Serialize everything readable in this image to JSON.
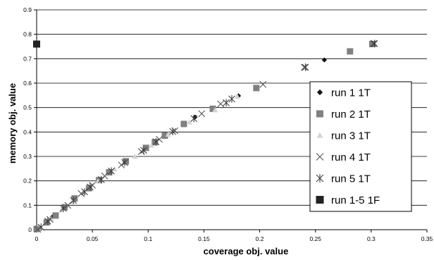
{
  "chart_data": {
    "type": "scatter",
    "title": "",
    "xlabel": "coverage obj. value",
    "ylabel": "memory obj. value",
    "xlim": [
      0,
      0.35
    ],
    "ylim": [
      0,
      0.9
    ],
    "x_ticks": [
      "0",
      "0.05",
      "0.1",
      "0.15",
      "0.2",
      "0.25",
      "0.3",
      "0.35"
    ],
    "y_ticks": [
      "0",
      "0.1",
      "0.2",
      "0.3",
      "0.4",
      "0.5",
      "0.6",
      "0.7",
      "0.8",
      "0.9"
    ],
    "grid": "horizontal",
    "legend_position": "right",
    "series": [
      {
        "name": "run 1 1T",
        "marker": "diamond",
        "color": "#111111",
        "points": [
          [
            0.002,
            0.005
          ],
          [
            0.014,
            0.052
          ],
          [
            0.026,
            0.092
          ],
          [
            0.047,
            0.171
          ],
          [
            0.066,
            0.233
          ],
          [
            0.08,
            0.28
          ],
          [
            0.106,
            0.36
          ],
          [
            0.142,
            0.461
          ],
          [
            0.181,
            0.548
          ],
          [
            0.258,
            0.695
          ],
          [
            0.301,
            0.758
          ]
        ]
      },
      {
        "name": "run 2 1T",
        "marker": "square",
        "color": "#808080",
        "points": [
          [
            0.0,
            0.003
          ],
          [
            0.009,
            0.03
          ],
          [
            0.017,
            0.058
          ],
          [
            0.025,
            0.092
          ],
          [
            0.034,
            0.128
          ],
          [
            0.047,
            0.17
          ],
          [
            0.056,
            0.203
          ],
          [
            0.065,
            0.235
          ],
          [
            0.08,
            0.28
          ],
          [
            0.098,
            0.335
          ],
          [
            0.106,
            0.358
          ],
          [
            0.115,
            0.385
          ],
          [
            0.132,
            0.433
          ],
          [
            0.158,
            0.495
          ],
          [
            0.197,
            0.58
          ],
          [
            0.281,
            0.73
          ],
          [
            0.301,
            0.76
          ]
        ]
      },
      {
        "name": "run 3 1T",
        "marker": "triangle",
        "color": "#d4d4d4",
        "points": [
          [
            0.003,
            0.008
          ],
          [
            0.013,
            0.045
          ],
          [
            0.022,
            0.08
          ],
          [
            0.032,
            0.115
          ],
          [
            0.042,
            0.152
          ],
          [
            0.055,
            0.198
          ],
          [
            0.07,
            0.248
          ],
          [
            0.088,
            0.3
          ],
          [
            0.103,
            0.345
          ],
          [
            0.118,
            0.39
          ],
          [
            0.137,
            0.44
          ],
          [
            0.16,
            0.49
          ],
          [
            0.18,
            0.545
          ]
        ]
      },
      {
        "name": "run 4 1T",
        "marker": "x",
        "color": "#555555",
        "points": [
          [
            0.001,
            0.002
          ],
          [
            0.012,
            0.042
          ],
          [
            0.028,
            0.1
          ],
          [
            0.04,
            0.148
          ],
          [
            0.05,
            0.182
          ],
          [
            0.061,
            0.22
          ],
          [
            0.076,
            0.265
          ],
          [
            0.094,
            0.32
          ],
          [
            0.11,
            0.37
          ],
          [
            0.124,
            0.405
          ],
          [
            0.148,
            0.475
          ],
          [
            0.165,
            0.515
          ],
          [
            0.203,
            0.595
          ],
          [
            0.24,
            0.665
          ],
          [
            0.302,
            0.762
          ]
        ]
      },
      {
        "name": "run 5 1T",
        "marker": "asterisk",
        "color": "#404040",
        "points": [
          [
            0.004,
            0.01
          ],
          [
            0.01,
            0.035
          ],
          [
            0.024,
            0.088
          ],
          [
            0.033,
            0.12
          ],
          [
            0.043,
            0.155
          ],
          [
            0.048,
            0.175
          ],
          [
            0.058,
            0.205
          ],
          [
            0.067,
            0.24
          ],
          [
            0.079,
            0.275
          ],
          [
            0.096,
            0.325
          ],
          [
            0.107,
            0.36
          ],
          [
            0.122,
            0.402
          ],
          [
            0.141,
            0.455
          ],
          [
            0.17,
            0.52
          ],
          [
            0.175,
            0.535
          ],
          [
            0.241,
            0.665
          ],
          [
            0.303,
            0.762
          ]
        ]
      },
      {
        "name": "run 1-5 1F",
        "marker": "square-dark",
        "color": "#222222",
        "points": [
          [
            0.0,
            0.76
          ]
        ]
      }
    ]
  }
}
